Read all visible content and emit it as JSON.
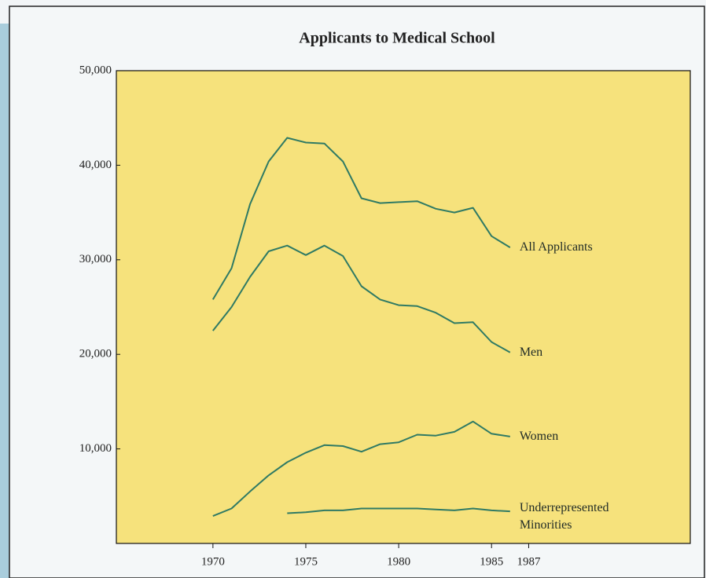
{
  "chart_data": {
    "type": "line",
    "title": "Applicants to Medical School",
    "x": [
      1970,
      1971,
      1972,
      1973,
      1974,
      1975,
      1976,
      1977,
      1978,
      1979,
      1980,
      1981,
      1982,
      1983,
      1984,
      1985,
      1986
    ],
    "series": [
      {
        "name": "All Applicants",
        "color": "#2f7a64",
        "values": [
          25800,
          29100,
          35900,
          40400,
          42900,
          42400,
          42300,
          40400,
          36500,
          36000,
          36100,
          36200,
          35400,
          35000,
          35500,
          32500,
          31300
        ]
      },
      {
        "name": "Men",
        "color": "#2f7a64",
        "values": [
          22500,
          25000,
          28200,
          30900,
          31500,
          30500,
          31500,
          30400,
          27200,
          25800,
          25200,
          25100,
          24400,
          23300,
          23400,
          21300,
          20200
        ]
      },
      {
        "name": "Women",
        "color": "#2f7a64",
        "values": [
          2900,
          3700,
          5500,
          7200,
          8600,
          9600,
          10400,
          10300,
          9700,
          10500,
          10700,
          11500,
          11400,
          11800,
          12900,
          11600,
          11300
        ]
      },
      {
        "name": "Underrepresented Minorities",
        "color": "#2f7a64",
        "values": [
          null,
          null,
          null,
          null,
          3200,
          3300,
          3500,
          3500,
          3700,
          3700,
          3700,
          3700,
          3600,
          3500,
          3700,
          3500,
          3400
        ]
      }
    ],
    "xlim": [
      1964.8,
      1995.7
    ],
    "xticks": [
      1970,
      1975,
      1980,
      1985,
      1987
    ],
    "ylim": [
      0,
      50000
    ],
    "yticks": [
      {
        "value": 10000,
        "label": "10,000"
      },
      {
        "value": 20000,
        "label": "20,000"
      },
      {
        "value": 30000,
        "label": "30,000"
      },
      {
        "value": 40000,
        "label": "40,000"
      },
      {
        "value": 50000,
        "label": "50,000"
      }
    ],
    "grid": false
  }
}
